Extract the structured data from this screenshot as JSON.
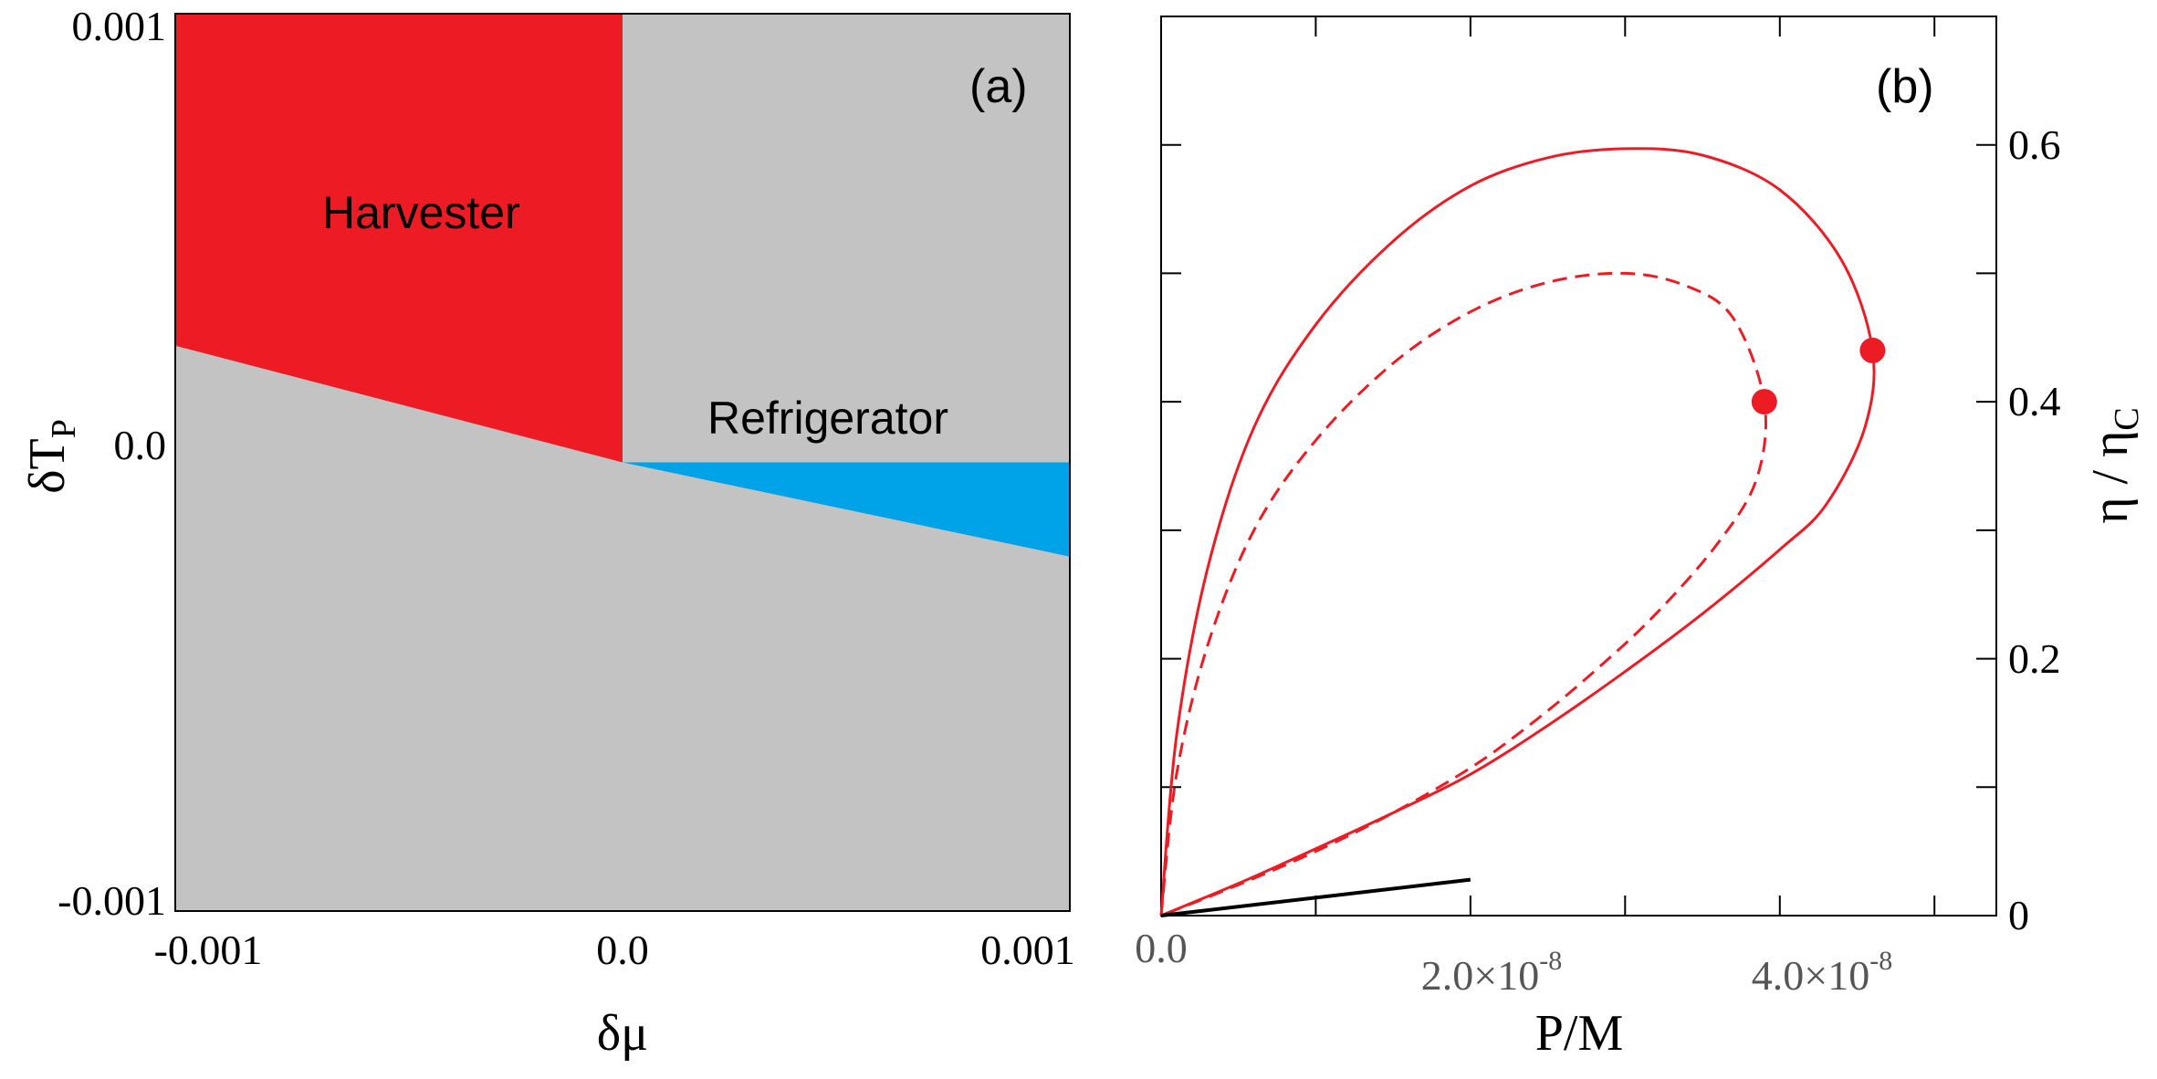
{
  "chart_data": [
    {
      "panel": "(a)",
      "type": "heatmap",
      "xlabel": "δμ",
      "ylabel": "δT",
      "ylabel_subscript": "P",
      "xlim": [
        -0.001,
        0.001
      ],
      "ylim": [
        -0.001,
        0.001
      ],
      "xticks": [
        "-0.001",
        "0.0",
        "0.001"
      ],
      "yticks": [
        "0.001",
        "0.0",
        "-0.001"
      ],
      "regions": [
        {
          "name": "Harvester",
          "color": "#ed1c24",
          "polygon": [
            [
              -0.001,
              0.001
            ],
            [
              0.0,
              0.001
            ],
            [
              0.0,
              0.0
            ],
            [
              -0.001,
              0.00026
            ]
          ]
        },
        {
          "name": "Refrigerator",
          "color": "#00a2e8",
          "polygon": [
            [
              0.0,
              0.0
            ],
            [
              0.001,
              0.0
            ],
            [
              0.001,
              -0.00021
            ]
          ]
        }
      ],
      "background_color": "#c3c3c3",
      "region_labels": {
        "harvester": "Harvester",
        "refrigerator": "Refrigerator"
      }
    },
    {
      "panel": "(b)",
      "type": "line",
      "xlabel": "P/M",
      "ylabel": "η / η",
      "ylabel_subscript": "C",
      "xlim": [
        0,
        5.4e-08
      ],
      "ylim": [
        0,
        0.7
      ],
      "xticks": [
        {
          "value": 0,
          "mantissa": "0.0",
          "exponent": ""
        },
        {
          "value": 2e-08,
          "mantissa": "2.0×10",
          "exponent": "-8"
        },
        {
          "value": 4e-08,
          "mantissa": "4.0×10",
          "exponent": "-8"
        }
      ],
      "yticks": [
        {
          "value": 0,
          "label": "0"
        },
        {
          "value": 0.2,
          "label": "0.2"
        },
        {
          "value": 0.4,
          "label": "0.4"
        },
        {
          "value": 0.6,
          "label": "0.6"
        }
      ],
      "series": [
        {
          "name": "solid",
          "style": "solid",
          "color": "#ed1c24",
          "x": [
            0,
            1e-09,
            3e-09,
            6e-09,
            1e-08,
            1.5e-08,
            2e-08,
            2.5e-08,
            3e-08,
            3.5e-08,
            4e-08,
            4.4e-08,
            4.6e-08,
            4.55e-08,
            4.3e-08,
            4e-08,
            3.5e-08,
            3e-08,
            2.5e-08,
            2e-08,
            1.5e-08,
            1e-08,
            5e-09,
            0
          ],
          "y": [
            0,
            0.14,
            0.27,
            0.38,
            0.46,
            0.525,
            0.568,
            0.59,
            0.597,
            0.592,
            0.565,
            0.51,
            0.44,
            0.38,
            0.32,
            0.285,
            0.235,
            0.19,
            0.148,
            0.11,
            0.08,
            0.052,
            0.025,
            0
          ]
        },
        {
          "name": "dashed",
          "style": "dashed",
          "color": "#ed1c24",
          "x": [
            0,
            1e-09,
            3e-09,
            6e-09,
            1e-08,
            1.5e-08,
            2e-08,
            2.5e-08,
            3e-08,
            3.4e-08,
            3.7e-08,
            3.9e-08,
            3.85e-08,
            3.6e-08,
            3.2e-08,
            2.8e-08,
            2.4e-08,
            2e-08,
            1.5e-08,
            1e-08,
            5e-09,
            0
          ],
          "y": [
            0,
            0.11,
            0.21,
            0.3,
            0.37,
            0.43,
            0.47,
            0.493,
            0.5,
            0.49,
            0.465,
            0.4,
            0.34,
            0.29,
            0.235,
            0.19,
            0.15,
            0.115,
            0.08,
            0.05,
            0.024,
            0
          ]
        },
        {
          "name": "black",
          "style": "solid",
          "color": "#000000",
          "x": [
            0,
            2e-08
          ],
          "y": [
            0,
            0.028
          ]
        }
      ],
      "markers": [
        {
          "x": 4.6e-08,
          "y": 0.44,
          "color": "#ed1c24"
        },
        {
          "x": 3.9e-08,
          "y": 0.4,
          "color": "#ed1c24"
        }
      ]
    }
  ]
}
